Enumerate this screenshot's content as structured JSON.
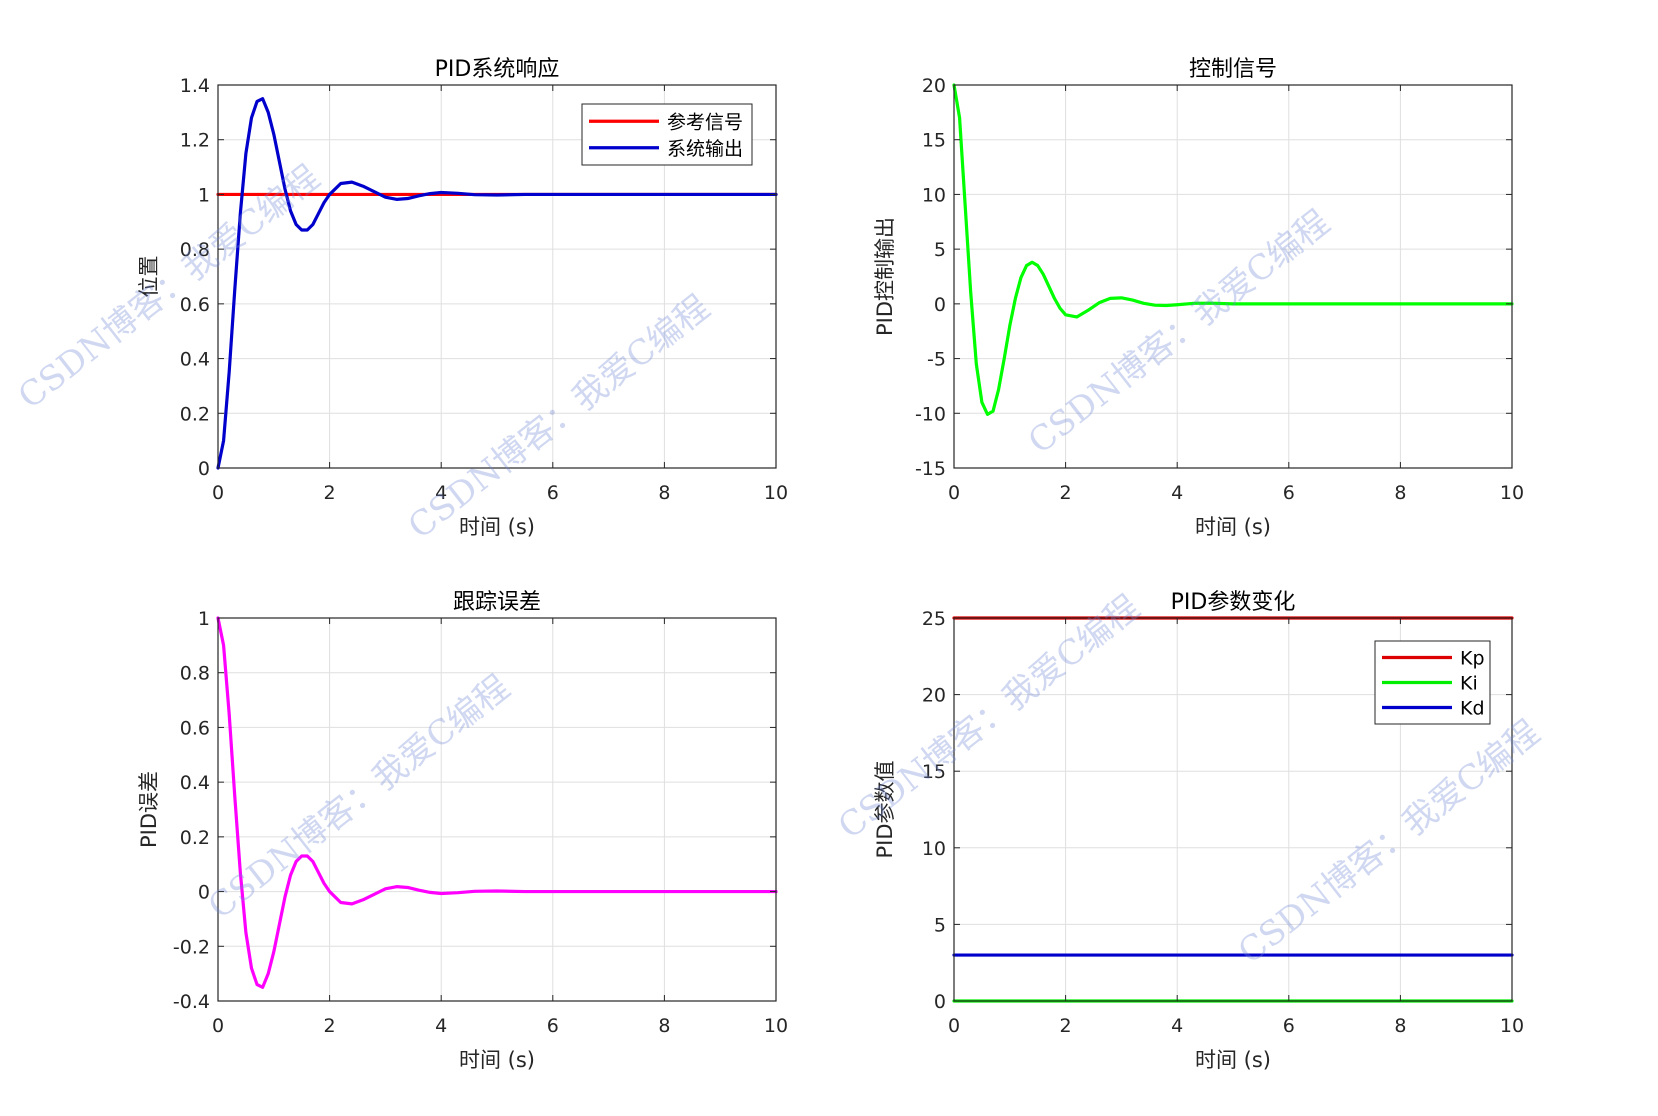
{
  "watermark": "CSDN博客：我爱C编程",
  "chart_data": [
    {
      "type": "line",
      "title": "PID系统响应",
      "xlabel": "时间 (s)",
      "ylabel": "位置",
      "xlim": [
        0,
        10
      ],
      "ylim": [
        0,
        1.4
      ],
      "xticks": [
        "0",
        "2",
        "4",
        "6",
        "8",
        "10"
      ],
      "yticks": [
        "0",
        "0.2",
        "0.4",
        "0.6",
        "0.8",
        "1",
        "1.2",
        "1.4"
      ],
      "grid": true,
      "legend_position": "top-right",
      "series": [
        {
          "name": "参考信号",
          "color": "#ff0000",
          "x": [
            0,
            10
          ],
          "y": [
            1,
            1
          ]
        },
        {
          "name": "系统输出",
          "color": "#0000cc",
          "x": [
            0,
            0.1,
            0.2,
            0.3,
            0.4,
            0.5,
            0.6,
            0.7,
            0.8,
            0.9,
            1.0,
            1.1,
            1.2,
            1.3,
            1.4,
            1.5,
            1.6,
            1.7,
            1.8,
            1.9,
            2.0,
            2.2,
            2.4,
            2.6,
            2.8,
            3.0,
            3.2,
            3.4,
            3.6,
            3.8,
            4.0,
            4.3,
            4.6,
            5.0,
            5.5,
            6.0,
            7.0,
            8.0,
            10.0
          ],
          "y": [
            0,
            0.1,
            0.35,
            0.65,
            0.93,
            1.15,
            1.28,
            1.34,
            1.35,
            1.3,
            1.22,
            1.12,
            1.02,
            0.94,
            0.89,
            0.87,
            0.87,
            0.89,
            0.93,
            0.97,
            1.0,
            1.04,
            1.045,
            1.03,
            1.01,
            0.99,
            0.982,
            0.985,
            0.995,
            1.003,
            1.007,
            1.004,
            0.999,
            0.998,
            1.0,
            1.0,
            1.0,
            1.0,
            1.0
          ]
        }
      ]
    },
    {
      "type": "line",
      "title": "控制信号",
      "xlabel": "时间 (s)",
      "ylabel": "PID控制输出",
      "xlim": [
        0,
        10
      ],
      "ylim": [
        -15,
        20
      ],
      "xticks": [
        "0",
        "2",
        "4",
        "6",
        "8",
        "10"
      ],
      "yticks": [
        "-15",
        "-10",
        "-5",
        "0",
        "5",
        "10",
        "15",
        "20"
      ],
      "grid": true,
      "series": [
        {
          "name": "",
          "color": "#00ff00",
          "x": [
            0,
            0.1,
            0.2,
            0.3,
            0.4,
            0.5,
            0.6,
            0.7,
            0.8,
            0.9,
            1.0,
            1.1,
            1.2,
            1.3,
            1.4,
            1.5,
            1.6,
            1.7,
            1.8,
            1.9,
            2.0,
            2.2,
            2.4,
            2.6,
            2.8,
            3.0,
            3.2,
            3.4,
            3.6,
            3.8,
            4.0,
            4.3,
            4.6,
            5.0,
            6.0,
            8.0,
            10.0
          ],
          "y": [
            20,
            17,
            9,
            1,
            -5.5,
            -9,
            -10.1,
            -9.8,
            -7.8,
            -5,
            -2,
            0.5,
            2.4,
            3.5,
            3.8,
            3.5,
            2.7,
            1.6,
            0.5,
            -0.4,
            -1.0,
            -1.2,
            -0.6,
            0.1,
            0.5,
            0.55,
            0.35,
            0.05,
            -0.12,
            -0.15,
            -0.08,
            0.05,
            0.06,
            0.0,
            0.0,
            0.0,
            0.0
          ]
        }
      ]
    },
    {
      "type": "line",
      "title": "跟踪误差",
      "xlabel": "时间 (s)",
      "ylabel": "PID误差",
      "xlim": [
        0,
        10
      ],
      "ylim": [
        -0.4,
        1
      ],
      "xticks": [
        "0",
        "2",
        "4",
        "6",
        "8",
        "10"
      ],
      "yticks": [
        "-0.4",
        "-0.2",
        "0",
        "0.2",
        "0.4",
        "0.6",
        "0.8",
        "1"
      ],
      "grid": true,
      "series": [
        {
          "name": "",
          "color": "#ff00ff",
          "x": [
            0,
            0.1,
            0.2,
            0.3,
            0.4,
            0.5,
            0.6,
            0.7,
            0.8,
            0.9,
            1.0,
            1.1,
            1.2,
            1.3,
            1.4,
            1.5,
            1.6,
            1.7,
            1.8,
            1.9,
            2.0,
            2.2,
            2.4,
            2.6,
            2.8,
            3.0,
            3.2,
            3.4,
            3.6,
            3.8,
            4.0,
            4.3,
            4.6,
            5.0,
            5.5,
            6.0,
            7.0,
            8.0,
            10.0
          ],
          "y": [
            1,
            0.9,
            0.65,
            0.35,
            0.07,
            -0.15,
            -0.28,
            -0.34,
            -0.35,
            -0.3,
            -0.22,
            -0.12,
            -0.02,
            0.06,
            0.11,
            0.13,
            0.13,
            0.11,
            0.07,
            0.03,
            0.0,
            -0.04,
            -0.045,
            -0.03,
            -0.01,
            0.01,
            0.018,
            0.015,
            0.005,
            -0.003,
            -0.007,
            -0.004,
            0.001,
            0.002,
            0.0,
            0.0,
            0.0,
            0.0,
            0.0
          ]
        }
      ]
    },
    {
      "type": "line",
      "title": "PID参数变化",
      "xlabel": "时间 (s)",
      "ylabel": "PID参数值",
      "xlim": [
        0,
        10
      ],
      "ylim": [
        0,
        25
      ],
      "xticks": [
        "0",
        "2",
        "4",
        "6",
        "8",
        "10"
      ],
      "yticks": [
        "0",
        "5",
        "10",
        "15",
        "20",
        "25"
      ],
      "grid": true,
      "legend_position": "top-right",
      "series": [
        {
          "name": "Kp",
          "color": "#dd0000",
          "x": [
            0,
            10
          ],
          "y": [
            25,
            25
          ]
        },
        {
          "name": "Ki",
          "color": "#00ee00",
          "x": [
            0,
            10
          ],
          "y": [
            0,
            0
          ]
        },
        {
          "name": "Kd",
          "color": "#0000cc",
          "x": [
            0,
            10
          ],
          "y": [
            3,
            3
          ]
        }
      ]
    }
  ]
}
